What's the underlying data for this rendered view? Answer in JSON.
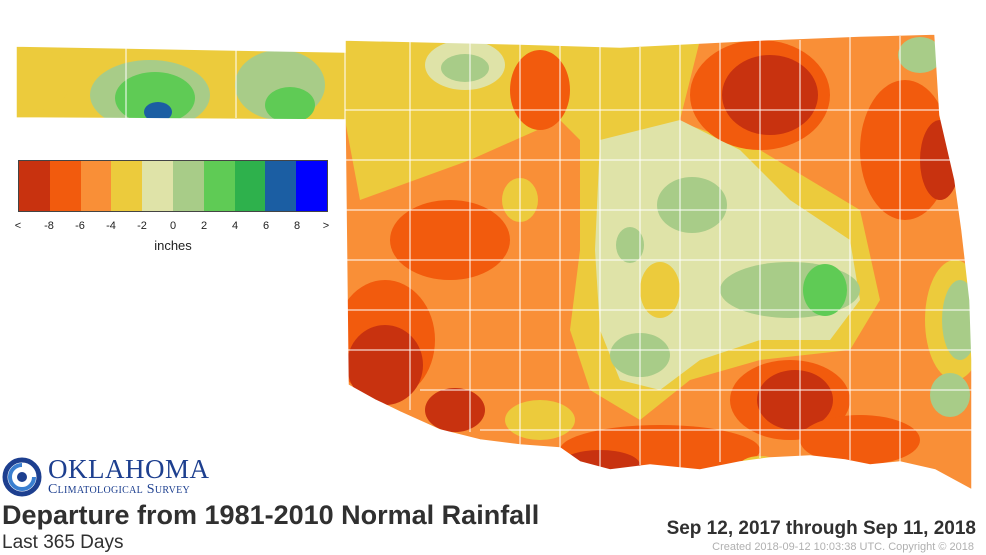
{
  "map": {
    "title": "Departure from 1981-2010 Normal Rainfall",
    "subtitle": "Last 365 Days",
    "date_range": "Sep 12, 2017 through Sep 11, 2018",
    "created": "Created 2018-09-12 10:03:38 UTC. Copyright © 2018",
    "region": "Oklahoma",
    "colors": {
      "very_dry": "#c8320f",
      "dry6": "#f25b0d",
      "dry4": "#f98f37",
      "dry2": "#eccb3c",
      "normal": "#dfe3a8",
      "wet2": "#a8cc88",
      "wet4": "#5fcb55",
      "wet6": "#2eb14c",
      "wet8": "#1b5ea3",
      "very_wet": "#0000ff",
      "county_line": "#ffffff"
    }
  },
  "legend": {
    "unit": "inches",
    "swatches": [
      "#c8320f",
      "#f25b0d",
      "#f98f37",
      "#eccb3c",
      "#dfe3a8",
      "#a8cc88",
      "#5fcb55",
      "#2eb14c",
      "#1b5ea3",
      "#0000ff"
    ],
    "ticks": [
      "<",
      "-8",
      "-6",
      "-4",
      "-2",
      "0",
      "2",
      "4",
      "6",
      "8",
      ">"
    ]
  },
  "logo": {
    "line1": "OKLAHOMA",
    "line2": "Climatological Survey",
    "icon": "ocs-swirl-logo"
  }
}
